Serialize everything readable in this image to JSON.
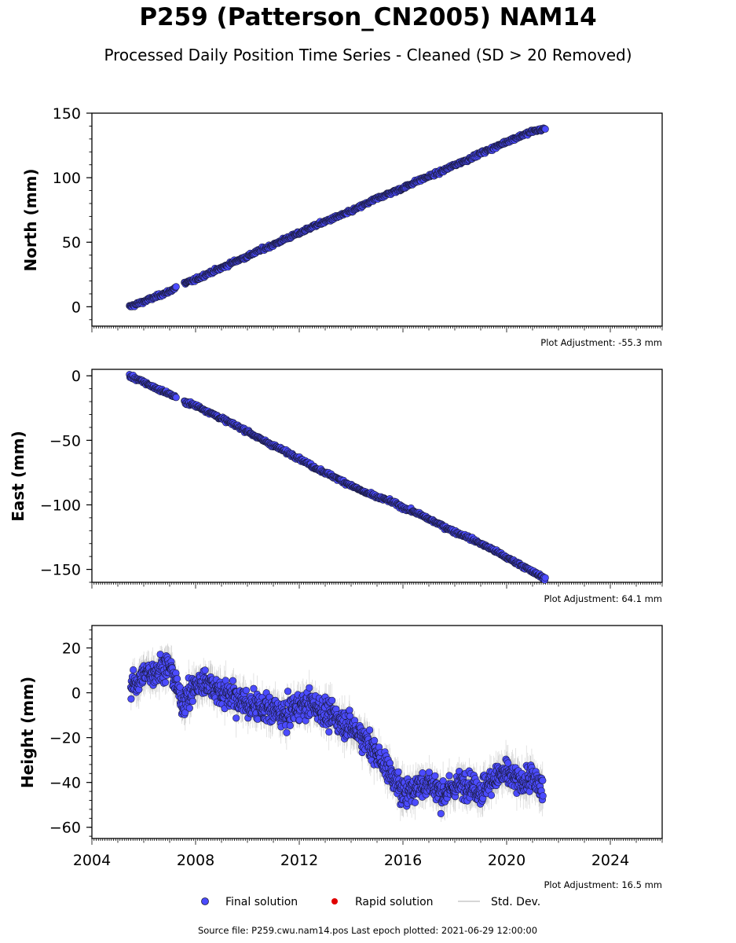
{
  "header": {
    "title": "P259 (Patterson_CN2005) NAM14",
    "subtitle": "Processed Daily Position Time Series - Cleaned (SD > 20 Removed)"
  },
  "footer": {
    "source": "Source file: P259.cwu.nam14.pos  Last epoch plotted: 2021-06-29 12:00:00"
  },
  "legend": {
    "final": "Final solution",
    "rapid": "Rapid solution",
    "std": "Std. Dev."
  },
  "colors": {
    "final_fill": "#4b4bff",
    "final_edge": "#1a1a3a",
    "rapid": "#e00000",
    "std": "#999999"
  },
  "chart_data": [
    {
      "type": "scatter",
      "panel": "north",
      "ylabel": "North (mm)",
      "adjustment": "Plot Adjustment: -55.3 mm",
      "xlim": [
        2004,
        2026
      ],
      "ylim": [
        -15,
        150
      ],
      "yticks": [
        0,
        50,
        100,
        150
      ],
      "ytick_labels": [
        "0",
        "50",
        "100",
        "150"
      ],
      "x": [
        2005.45,
        2006.0,
        2006.5,
        2007.0,
        2007.4,
        2008.0,
        2008.5,
        2009.0,
        2009.5,
        2010.0,
        2010.5,
        2011.0,
        2011.5,
        2012.0,
        2012.5,
        2013.0,
        2013.5,
        2014.0,
        2014.5,
        2015.0,
        2015.5,
        2016.0,
        2016.5,
        2017.0,
        2017.5,
        2018.0,
        2018.5,
        2019.0,
        2019.5,
        2020.0,
        2020.5,
        2021.0,
        2021.5
      ],
      "y": [
        0,
        4,
        8,
        12,
        17,
        21,
        26,
        30,
        35,
        39,
        44,
        48,
        53,
        57,
        62,
        66,
        70,
        74,
        79,
        84,
        88,
        92,
        97,
        101,
        105,
        110,
        114,
        119,
        123,
        128,
        132,
        136,
        138
      ],
      "series_name": "Final solution"
    },
    {
      "type": "scatter",
      "panel": "east",
      "ylabel": "East (mm)",
      "adjustment": "Plot Adjustment: 64.1 mm",
      "xlim": [
        2004,
        2026
      ],
      "ylim": [
        -160,
        5
      ],
      "yticks": [
        0,
        -50,
        -100,
        -150
      ],
      "ytick_labels": [
        "0",
        "−50",
        "−100",
        "−150"
      ],
      "x": [
        2005.45,
        2006.0,
        2006.5,
        2007.0,
        2007.4,
        2008.0,
        2008.5,
        2009.0,
        2009.5,
        2010.0,
        2010.5,
        2011.0,
        2011.5,
        2012.0,
        2012.5,
        2013.0,
        2013.5,
        2014.0,
        2014.5,
        2015.0,
        2015.5,
        2016.0,
        2016.5,
        2017.0,
        2017.5,
        2018.0,
        2018.5,
        2019.0,
        2019.5,
        2020.0,
        2020.5,
        2021.0,
        2021.5
      ],
      "y": [
        0,
        -5,
        -10,
        -14,
        -19,
        -23,
        -28,
        -33,
        -38,
        -43,
        -49,
        -54,
        -59,
        -64,
        -70,
        -75,
        -80,
        -85,
        -90,
        -94,
        -97,
        -102,
        -106,
        -111,
        -116,
        -121,
        -125,
        -130,
        -135,
        -141,
        -146,
        -152,
        -157
      ],
      "series_name": "Final solution"
    },
    {
      "type": "scatter",
      "panel": "height",
      "ylabel": "Height (mm)",
      "adjustment": "Plot Adjustment: 16.5 mm",
      "xlim": [
        2004,
        2026
      ],
      "ylim": [
        -65,
        30
      ],
      "yticks": [
        20,
        0,
        -20,
        -40,
        -60
      ],
      "ytick_labels": [
        "20",
        "0",
        "−20",
        "−40",
        "−60"
      ],
      "xticks": [
        2004,
        2008,
        2012,
        2016,
        2020,
        2024
      ],
      "xtick_labels": [
        "2004",
        "2008",
        "2012",
        "2016",
        "2020",
        "2024"
      ],
      "x": [
        2005.5,
        2006.0,
        2006.5,
        2007.0,
        2007.5,
        2008.0,
        2008.5,
        2009.0,
        2009.5,
        2010.0,
        2010.5,
        2011.0,
        2011.5,
        2012.0,
        2012.5,
        2013.0,
        2013.5,
        2014.0,
        2014.5,
        2015.0,
        2015.5,
        2016.0,
        2016.5,
        2017.0,
        2017.5,
        2018.0,
        2018.5,
        2019.0,
        2019.5,
        2020.0,
        2020.5,
        2021.0,
        2021.4
      ],
      "y": [
        2,
        8,
        10,
        12,
        -5,
        3,
        5,
        0,
        -2,
        -5,
        -7,
        -8,
        -10,
        -6,
        -5,
        -9,
        -12,
        -15,
        -20,
        -28,
        -35,
        -45,
        -42,
        -40,
        -45,
        -42,
        -40,
        -44,
        -38,
        -36,
        -40,
        -38,
        -44
      ],
      "series_name": "Final solution"
    }
  ]
}
